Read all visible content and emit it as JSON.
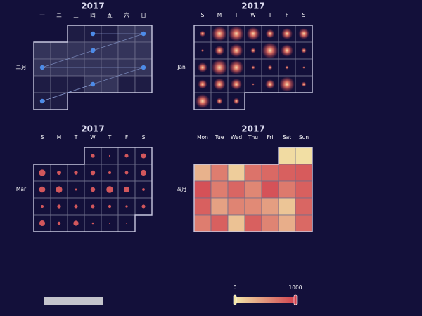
{
  "colors": {
    "background": "#13103a",
    "cell_border": "#6f6f8c",
    "month_border": "#c8c8e0",
    "point": "#4d8be8",
    "bubble": "#d2575c",
    "heat_low": "#f3e6a8",
    "heat_high": "#d2424f"
  },
  "chart_data": [
    {
      "type": "graph-calendar",
      "title": "2017",
      "month_label": "二月",
      "day_labels": [
        "一",
        "二",
        "三",
        "四",
        "五",
        "六",
        "日"
      ],
      "month": "2017-02",
      "first_day": "mon",
      "highlight": [
        [
          "2017-02-04",
          "2017-02-05"
        ],
        [
          "2017-02-06",
          "2017-02-07",
          "2017-02-08",
          "2017-02-09",
          "2017-02-10",
          "2017-02-11",
          "2017-02-12"
        ],
        [
          "2017-02-13",
          "2017-02-14",
          "2017-02-15",
          "2017-02-16",
          "2017-02-17",
          "2017-02-18",
          "2017-02-19"
        ],
        [
          "2017-02-23",
          "2017-02-24"
        ]
      ],
      "nodes": [
        "2017-02-02",
        "2017-02-05",
        "2017-02-09",
        "2017-02-13",
        "2017-02-19",
        "2017-02-23",
        "2017-02-27"
      ],
      "links": [
        [
          "2017-02-02",
          "2017-02-05"
        ],
        [
          "2017-02-05",
          "2017-02-09"
        ],
        [
          "2017-02-09",
          "2017-02-13"
        ],
        [
          "2017-02-13",
          "2017-02-19"
        ],
        [
          "2017-02-19",
          "2017-02-27"
        ],
        [
          "2017-02-27",
          "2017-02-23"
        ]
      ]
    },
    {
      "type": "scatter-calendar",
      "title": "2017",
      "month_label": "Jan",
      "day_labels": [
        "S",
        "M",
        "T",
        "W",
        "T",
        "F",
        "S"
      ],
      "month": "2017-01",
      "first_day": "sun",
      "glow": true,
      "values": [
        280,
        860,
        880,
        740,
        470,
        620,
        600,
        80,
        520,
        760,
        230,
        940,
        700,
        240,
        520,
        920,
        830,
        140,
        200,
        130,
        60,
        490,
        670,
        620,
        40,
        520,
        870,
        210,
        810,
        300,
        300
      ],
      "vmax": 1000
    },
    {
      "type": "scatter-calendar",
      "title": "2017",
      "month_label": "Mar",
      "day_labels": [
        "S",
        "M",
        "T",
        "W",
        "T",
        "F",
        "S"
      ],
      "month": "2017-03",
      "first_day": "sun",
      "glow": false,
      "values": [
        400,
        60,
        380,
        600,
        820,
        480,
        420,
        540,
        260,
        360,
        720,
        760,
        820,
        140,
        520,
        860,
        720,
        230,
        260,
        400,
        380,
        360,
        280,
        180,
        380,
        700,
        320,
        620,
        110,
        30,
        20
      ],
      "vmax": 1000
    },
    {
      "type": "heatmap-calendar",
      "title": "2017",
      "month_label": "四月",
      "day_labels": [
        "Mon",
        "Tue",
        "Wed",
        "Thu",
        "Fri",
        "Sat",
        "Sun"
      ],
      "month": "2017-04",
      "first_day": "mon",
      "values": [
        70,
        40,
        320,
        640,
        150,
        700,
        760,
        820,
        850,
        910,
        640,
        780,
        580,
        900,
        660,
        820,
        820,
        420,
        600,
        560,
        440,
        200,
        780,
        640,
        820,
        220,
        820,
        600,
        340,
        760
      ],
      "vmin": 0,
      "vmax": 1000
    }
  ],
  "visual_map": {
    "min_label": "0",
    "max_label": "1000",
    "min": 0,
    "max": 1000
  }
}
